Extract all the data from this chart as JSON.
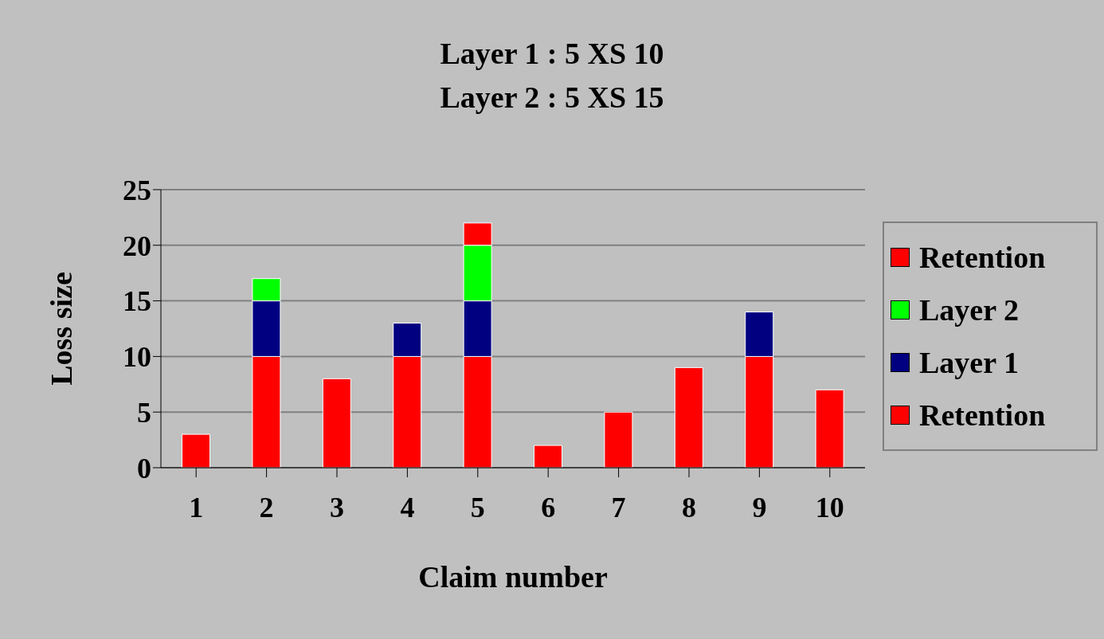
{
  "chart_data": {
    "type": "bar",
    "title": "Layer 1 : 5 XS 10",
    "subtitle": "Layer 2 : 5 XS 15",
    "xlabel": "Claim number",
    "ylabel": "Loss size",
    "categories": [
      "1",
      "2",
      "3",
      "4",
      "5",
      "6",
      "7",
      "8",
      "9",
      "10"
    ],
    "stacked": true,
    "series": [
      {
        "name": "Retention",
        "color": "#ff0000",
        "values": [
          3,
          10,
          8,
          10,
          10,
          2,
          5,
          9,
          10,
          7
        ]
      },
      {
        "name": "Layer 1",
        "color": "#000080",
        "values": [
          null,
          5,
          null,
          3,
          5,
          null,
          null,
          null,
          4,
          null
        ]
      },
      {
        "name": "Layer 2",
        "color": "#00ff00",
        "values": [
          null,
          2,
          null,
          null,
          5,
          null,
          null,
          null,
          null,
          null
        ]
      },
      {
        "name": "Retention",
        "color": "#ff0000",
        "values": [
          null,
          null,
          null,
          null,
          2,
          null,
          null,
          null,
          null,
          null
        ]
      }
    ],
    "ylim": [
      0,
      25
    ],
    "yticks": [
      0,
      5,
      10,
      15,
      20,
      25
    ],
    "grid": "y",
    "legend": "right"
  }
}
